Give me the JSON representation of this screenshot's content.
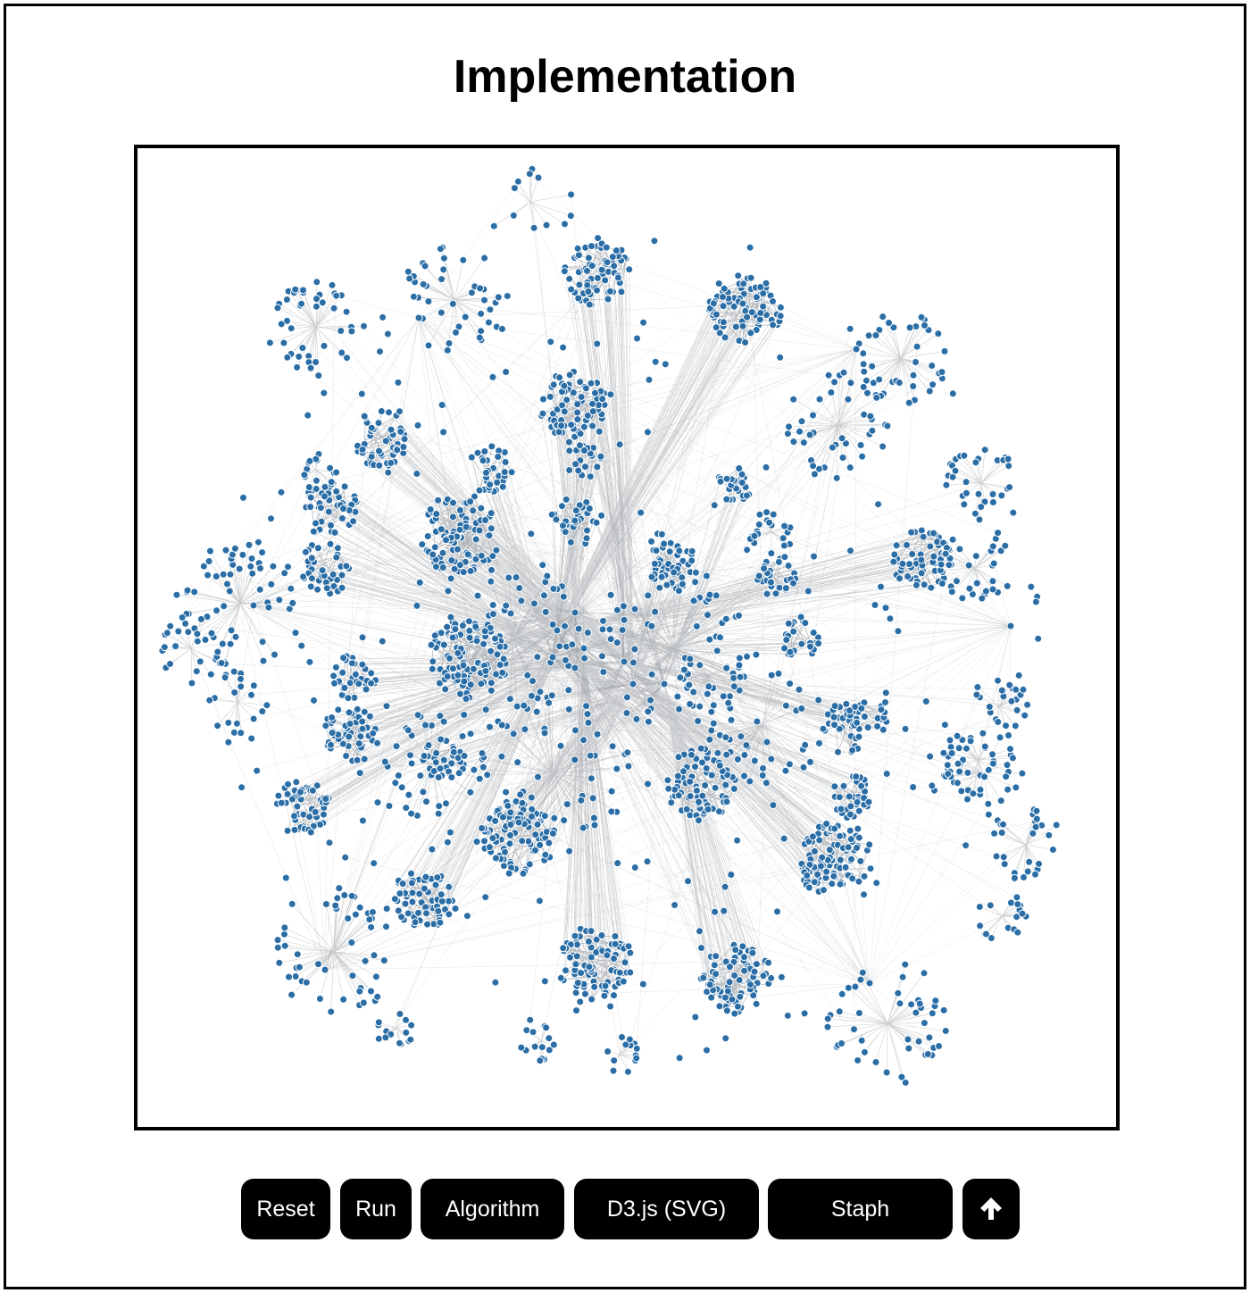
{
  "page": {
    "title": "Implementation"
  },
  "graph": {
    "node_color": "#2b6ea6",
    "node_stroke": "#ffffff",
    "edge_color": "#a0a4a8"
  },
  "toolbar": {
    "reset_label": "Reset",
    "run_label": "Run",
    "algorithm_label": "Algorithm",
    "renderer_label": "D3.js (SVG)",
    "dataset_label": "Staph",
    "scroll_top_icon": "arrow-up-icon"
  }
}
